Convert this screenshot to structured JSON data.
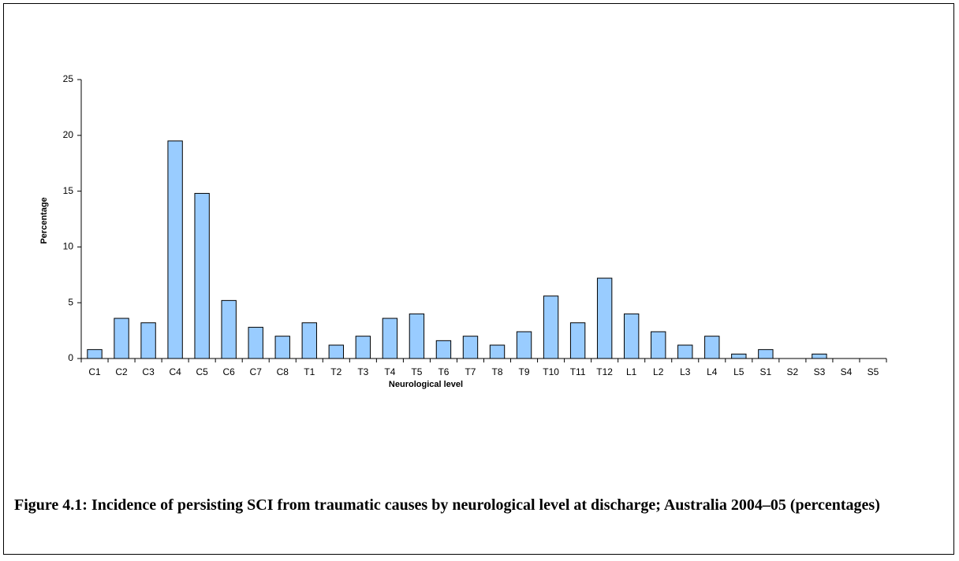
{
  "chart_data": {
    "type": "bar",
    "x_label": "Neurological level",
    "y_label": "Percentage",
    "caption": "Figure 4.1: Incidence of persisting SCI from traumatic causes by neurological level at discharge; Australia 2004–05 (percentages)",
    "categories": [
      "C1",
      "C2",
      "C3",
      "C4",
      "C5",
      "C6",
      "C7",
      "C8",
      "T1",
      "T2",
      "T3",
      "T4",
      "T5",
      "T6",
      "T7",
      "T8",
      "T9",
      "T10",
      "T11",
      "T12",
      "L1",
      "L2",
      "L3",
      "L4",
      "L5",
      "S1",
      "S2",
      "S3",
      "S4",
      "S5"
    ],
    "values": [
      0.8,
      3.6,
      3.2,
      19.5,
      14.8,
      5.2,
      2.8,
      2.0,
      3.2,
      1.2,
      2.0,
      3.6,
      4.0,
      1.6,
      2.0,
      1.2,
      2.4,
      5.6,
      3.2,
      7.2,
      4.0,
      2.4,
      1.2,
      2.0,
      0.4,
      0.8,
      0,
      0.4,
      0,
      0
    ],
    "color": "#99ccff",
    "ylim": [
      0,
      25
    ],
    "yticks": [
      0,
      5,
      10,
      15,
      20,
      25
    ],
    "grid": false
  }
}
